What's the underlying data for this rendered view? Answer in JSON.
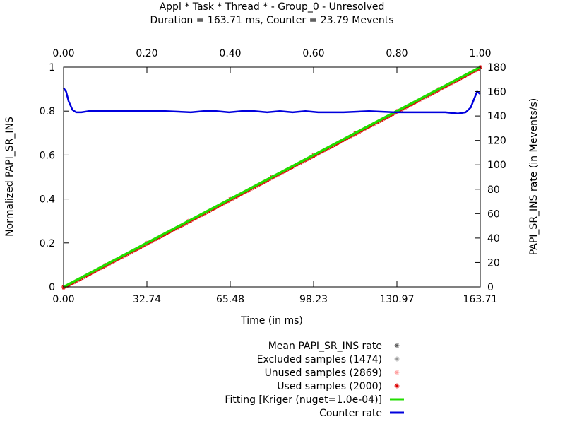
{
  "chart_data": {
    "type": "line",
    "title": "Appl * Task * Thread * - Group_0 - Unresolved",
    "subtitle": "Duration = 163.71 ms, Counter = 23.79 Mevents",
    "xlabel": "Time (in ms)",
    "ylabel_left": "Normalized PAPI_SR_INS",
    "ylabel_right": "PAPI_SR_INS rate (in Mevents/s)",
    "xlim": [
      0,
      163.71
    ],
    "ylim_left": [
      0,
      1
    ],
    "ylim_right": [
      0,
      180
    ],
    "x2lim": [
      0,
      1
    ],
    "x_ticks": [
      "0.00",
      "32.74",
      "65.48",
      "98.23",
      "130.97",
      "163.71"
    ],
    "x2_ticks": [
      "0.00",
      "0.20",
      "0.40",
      "0.60",
      "0.80",
      "1.00"
    ],
    "yleft_ticks": [
      "0",
      "0.2",
      "0.4",
      "0.6",
      "0.8",
      "1"
    ],
    "yright_ticks": [
      "0",
      "20",
      "40",
      "60",
      "80",
      "100",
      "120",
      "140",
      "160",
      "180"
    ],
    "grid": false,
    "legend_position": "bottom",
    "legend": [
      {
        "label": "Mean PAPI_SR_INS rate",
        "marker": "star",
        "color": "#555555"
      },
      {
        "label": "Excluded samples (1474)",
        "marker": "star",
        "color": "#999999"
      },
      {
        "label": "Unused samples (2869)",
        "marker": "star",
        "color": "#ff9a9a"
      },
      {
        "label": "Used samples (2000)",
        "marker": "star",
        "color": "#dd0000"
      },
      {
        "label": "Fitting [Kriger (nuget=1.0e-04)]",
        "marker": "line",
        "color": "#22dd00"
      },
      {
        "label": "Counter rate",
        "marker": "line",
        "color": "#0000dd"
      }
    ],
    "series": [
      {
        "name": "Used samples (2000)",
        "axis": "left",
        "color": "#dd0000",
        "x": [
          0,
          16.37,
          32.74,
          49.11,
          65.48,
          81.86,
          98.23,
          114.6,
          130.97,
          147.34,
          163.71
        ],
        "values": [
          0,
          0.1,
          0.2,
          0.3,
          0.4,
          0.5,
          0.6,
          0.7,
          0.8,
          0.9,
          1.0
        ]
      },
      {
        "name": "Fitting [Kriger (nuget=1.0e-04)]",
        "axis": "left",
        "color": "#22dd00",
        "x": [
          0,
          163.71
        ],
        "values": [
          0,
          1.0
        ]
      },
      {
        "name": "Counter rate",
        "axis": "right",
        "color": "#0000dd",
        "x": [
          0,
          1.0,
          2.0,
          3.5,
          5.0,
          7.0,
          10,
          20,
          40,
          50,
          55,
          60,
          65,
          70,
          75,
          80,
          85,
          90,
          95,
          100,
          110,
          120,
          130,
          140,
          150,
          155,
          158,
          160,
          161.5,
          162.5,
          163.71
        ],
        "values": [
          163,
          160,
          152,
          145,
          143,
          143,
          144,
          144,
          144,
          143,
          144,
          144,
          143,
          144,
          144,
          143,
          144,
          143,
          144,
          143,
          143,
          144,
          143,
          143,
          143,
          142,
          143,
          147,
          155,
          160,
          158
        ]
      }
    ]
  }
}
